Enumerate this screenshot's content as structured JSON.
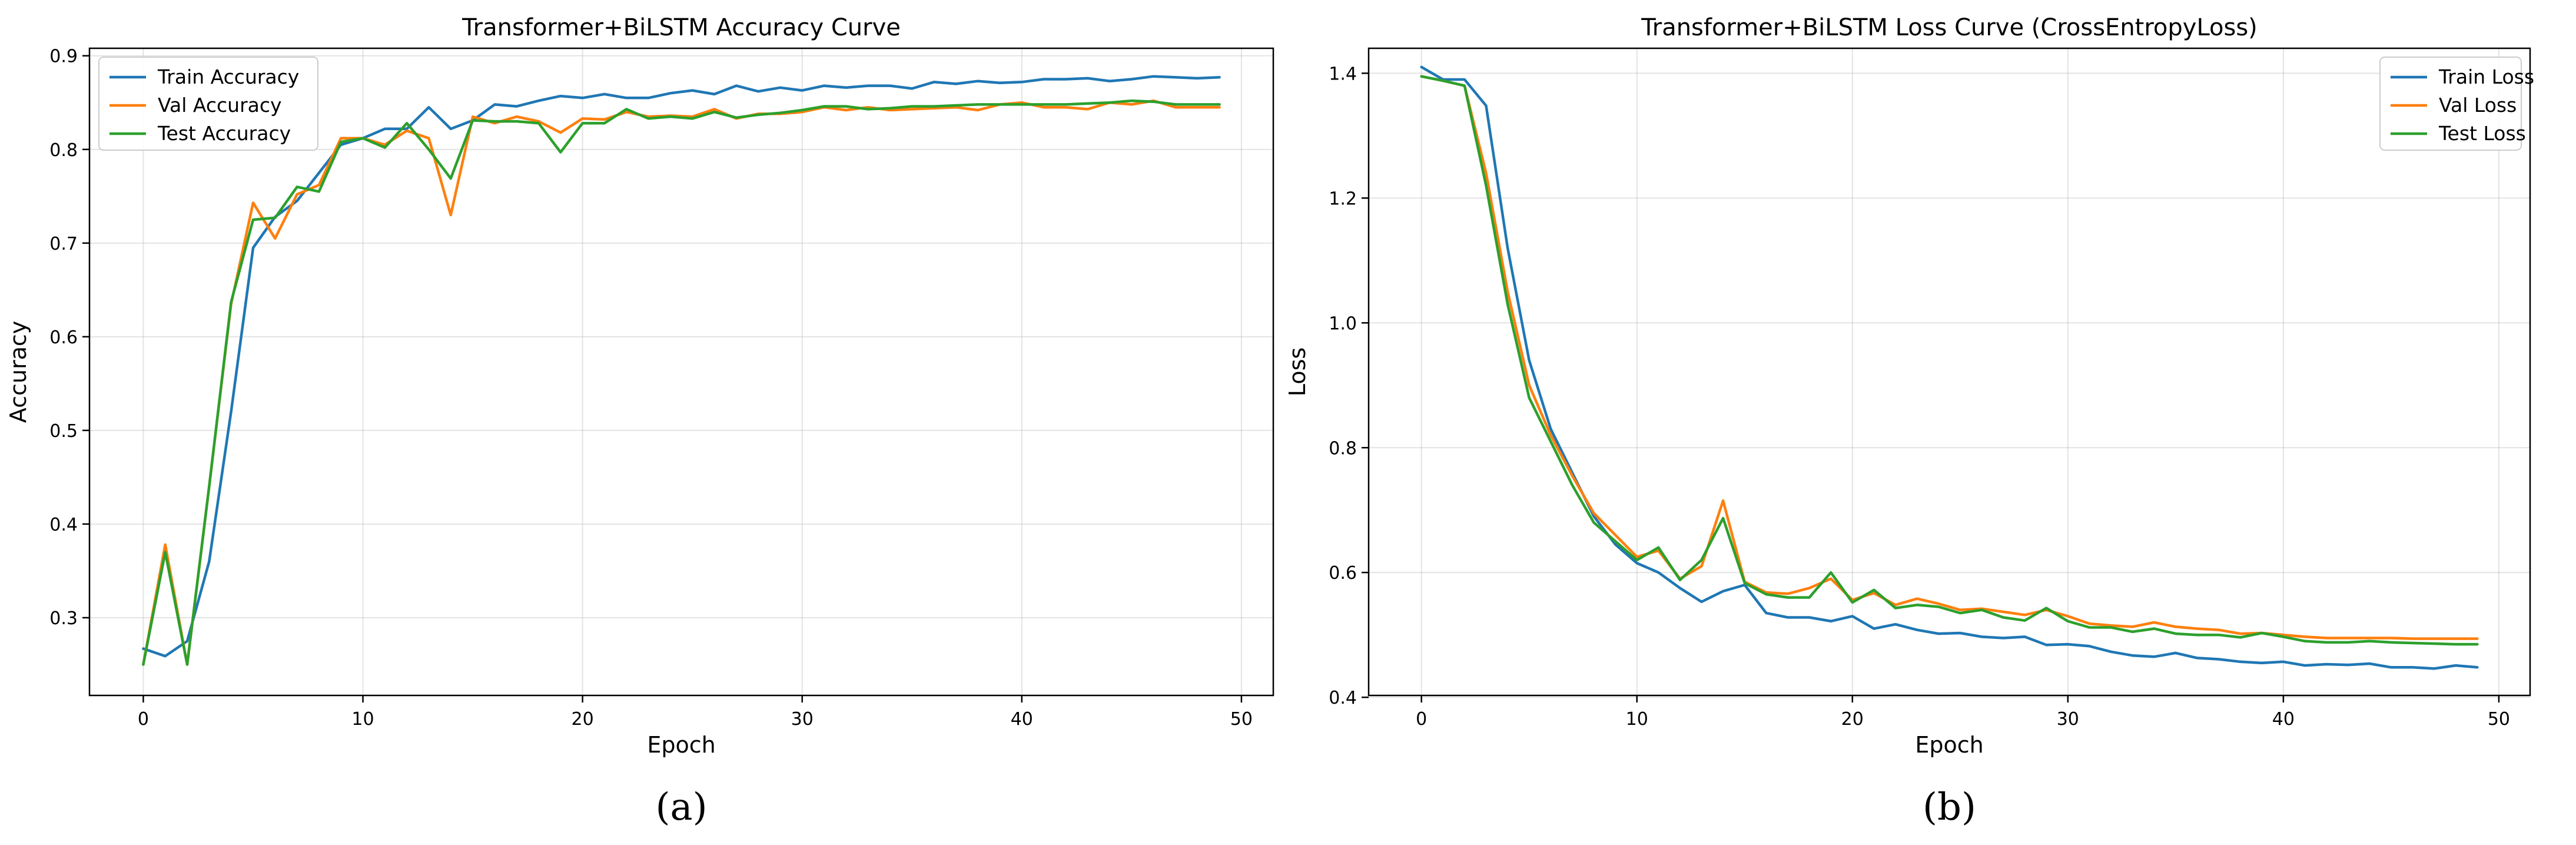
{
  "chart_data": [
    {
      "type": "line",
      "title": "Transformer+BiLSTM   Accuracy Curve",
      "xlabel": "Epoch",
      "ylabel": "Accuracy",
      "panel_label": "(a)",
      "xlim": [
        -2.45,
        51.45
      ],
      "ylim": [
        0.217,
        0.908
      ],
      "xticks": [
        0,
        10,
        20,
        30,
        40,
        50
      ],
      "yticks": [
        0.3,
        0.4,
        0.5,
        0.6,
        0.7,
        0.8,
        0.9
      ],
      "grid": true,
      "legend": "upper left",
      "x": [
        0,
        1,
        2,
        3,
        4,
        5,
        6,
        7,
        8,
        9,
        10,
        11,
        12,
        13,
        14,
        15,
        16,
        17,
        18,
        19,
        20,
        21,
        22,
        23,
        24,
        25,
        26,
        27,
        28,
        29,
        30,
        31,
        32,
        33,
        34,
        35,
        36,
        37,
        38,
        39,
        40,
        41,
        42,
        43,
        44,
        45,
        46,
        47,
        48,
        49
      ],
      "series": [
        {
          "name": "Train Accuracy",
          "color": "#1f77b4",
          "values": [
            0.267,
            0.259,
            0.275,
            0.36,
            0.52,
            0.695,
            0.728,
            0.745,
            0.775,
            0.805,
            0.812,
            0.822,
            0.822,
            0.845,
            0.822,
            0.831,
            0.848,
            0.846,
            0.852,
            0.857,
            0.855,
            0.859,
            0.855,
            0.855,
            0.86,
            0.863,
            0.859,
            0.868,
            0.862,
            0.866,
            0.863,
            0.868,
            0.866,
            0.868,
            0.868,
            0.865,
            0.872,
            0.87,
            0.873,
            0.871,
            0.872,
            0.875,
            0.875,
            0.876,
            0.873,
            0.875,
            0.878,
            0.877,
            0.876,
            0.877
          ]
        },
        {
          "name": "Val Accuracy",
          "color": "#ff7f0e",
          "values": [
            0.25,
            0.378,
            0.25,
            0.44,
            0.635,
            0.743,
            0.705,
            0.752,
            0.762,
            0.812,
            0.812,
            0.805,
            0.82,
            0.812,
            0.73,
            0.835,
            0.828,
            0.835,
            0.83,
            0.818,
            0.833,
            0.832,
            0.84,
            0.835,
            0.836,
            0.835,
            0.843,
            0.833,
            0.838,
            0.838,
            0.84,
            0.845,
            0.842,
            0.845,
            0.842,
            0.843,
            0.844,
            0.845,
            0.842,
            0.848,
            0.85,
            0.845,
            0.845,
            0.843,
            0.85,
            0.848,
            0.852,
            0.845,
            0.845,
            0.845
          ]
        },
        {
          "name": "Test Accuracy",
          "color": "#2ca02c",
          "values": [
            0.25,
            0.37,
            0.25,
            0.44,
            0.637,
            0.725,
            0.727,
            0.76,
            0.755,
            0.808,
            0.812,
            0.802,
            0.828,
            0.8,
            0.769,
            0.831,
            0.83,
            0.83,
            0.828,
            0.797,
            0.828,
            0.828,
            0.843,
            0.833,
            0.835,
            0.833,
            0.84,
            0.834,
            0.837,
            0.839,
            0.842,
            0.846,
            0.846,
            0.843,
            0.844,
            0.846,
            0.846,
            0.847,
            0.848,
            0.848,
            0.848,
            0.848,
            0.848,
            0.849,
            0.85,
            0.852,
            0.851,
            0.848,
            0.848,
            0.848
          ]
        }
      ]
    },
    {
      "type": "line",
      "title": "Transformer+BiLSTM   Loss Curve (CrossEntropyLoss)",
      "xlabel": "Epoch",
      "ylabel": "Loss",
      "panel_label": "(b)",
      "xlim": [
        -2.45,
        51.45
      ],
      "ylim": [
        0.403,
        1.44
      ],
      "xticks": [
        0,
        10,
        20,
        30,
        40,
        50
      ],
      "yticks": [
        0.4,
        0.6,
        0.8,
        1.0,
        1.2,
        1.4
      ],
      "grid": true,
      "legend": "upper right",
      "x": [
        0,
        1,
        2,
        3,
        4,
        5,
        6,
        7,
        8,
        9,
        10,
        11,
        12,
        13,
        14,
        15,
        16,
        17,
        18,
        19,
        20,
        21,
        22,
        23,
        24,
        25,
        26,
        27,
        28,
        29,
        30,
        31,
        32,
        33,
        34,
        35,
        36,
        37,
        38,
        39,
        40,
        41,
        42,
        43,
        44,
        45,
        46,
        47,
        48,
        49
      ],
      "series": [
        {
          "name": "Train Loss",
          "color": "#1f77b4",
          "values": [
            1.41,
            1.39,
            1.39,
            1.348,
            1.12,
            0.94,
            0.83,
            0.76,
            0.69,
            0.645,
            0.615,
            0.6,
            0.575,
            0.553,
            0.57,
            0.58,
            0.535,
            0.528,
            0.528,
            0.522,
            0.53,
            0.51,
            0.517,
            0.508,
            0.502,
            0.503,
            0.497,
            0.495,
            0.497,
            0.484,
            0.485,
            0.482,
            0.473,
            0.467,
            0.465,
            0.471,
            0.463,
            0.461,
            0.457,
            0.455,
            0.457,
            0.451,
            0.453,
            0.452,
            0.454,
            0.448,
            0.448,
            0.446,
            0.451,
            0.448
          ]
        },
        {
          "name": "Val Loss",
          "color": "#ff7f0e",
          "values": [
            1.395,
            1.388,
            1.38,
            1.24,
            1.05,
            0.9,
            0.82,
            0.755,
            0.695,
            0.66,
            0.625,
            0.635,
            0.59,
            0.61,
            0.715,
            0.585,
            0.568,
            0.566,
            0.575,
            0.59,
            0.556,
            0.567,
            0.548,
            0.558,
            0.55,
            0.54,
            0.542,
            0.537,
            0.532,
            0.54,
            0.53,
            0.518,
            0.515,
            0.513,
            0.52,
            0.513,
            0.51,
            0.508,
            0.502,
            0.503,
            0.5,
            0.497,
            0.495,
            0.495,
            0.495,
            0.495,
            0.494,
            0.494,
            0.494,
            0.494
          ]
        },
        {
          "name": "Test Loss",
          "color": "#2ca02c",
          "values": [
            1.395,
            1.388,
            1.38,
            1.22,
            1.03,
            0.88,
            0.81,
            0.74,
            0.68,
            0.65,
            0.62,
            0.64,
            0.588,
            0.62,
            0.687,
            0.583,
            0.565,
            0.56,
            0.56,
            0.6,
            0.552,
            0.572,
            0.543,
            0.548,
            0.545,
            0.535,
            0.54,
            0.528,
            0.523,
            0.543,
            0.522,
            0.512,
            0.512,
            0.505,
            0.51,
            0.502,
            0.5,
            0.5,
            0.496,
            0.503,
            0.497,
            0.49,
            0.488,
            0.488,
            0.49,
            0.488,
            0.487,
            0.486,
            0.485,
            0.485
          ]
        }
      ]
    }
  ]
}
